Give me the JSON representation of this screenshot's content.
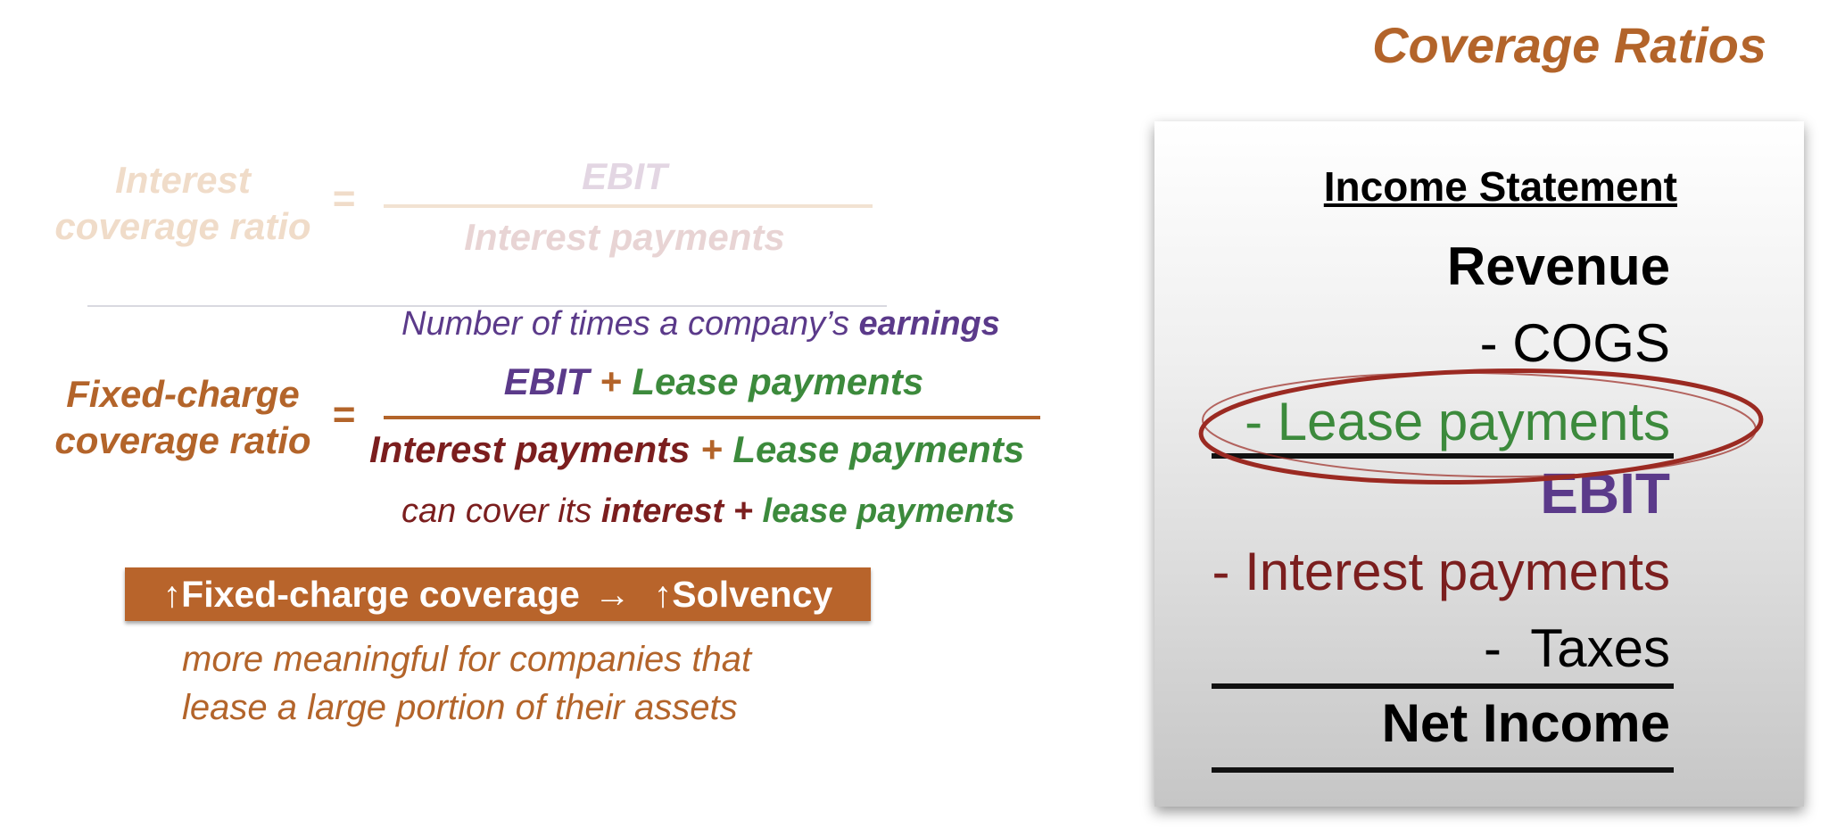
{
  "title": "Coverage Ratios",
  "interest": {
    "label_line1": "Interest",
    "label_line2": "coverage ratio",
    "equals": "=",
    "numerator": "EBIT",
    "denominator": "Interest payments"
  },
  "fixed_charge": {
    "caption_top": "Number of times a company’s",
    "caption_top_emph": "earnings",
    "label_line1": "Fixed-charge",
    "label_line2": "coverage ratio",
    "equals": "=",
    "num_a": "EBIT",
    "plus": "+",
    "num_b": "Lease payments",
    "den_a": "Interest payments",
    "den_b": "Lease payments",
    "caption_bottom": "can cover its",
    "caption_bottom_a": "interest",
    "caption_bottom_b": "lease payments"
  },
  "solvency_box": {
    "up1": "↑",
    "left": "Fixed-charge coverage",
    "arrow": "→",
    "up2": "↑",
    "right": "Solvency"
  },
  "note_line1": "more meaningful for companies that",
  "note_line2": "lease a large portion of their assets",
  "income_statement": {
    "heading": "Income Statement",
    "revenue": "Revenue",
    "cogs": "- COGS",
    "lease": "- Lease payments",
    "ebit": "EBIT",
    "interest": "- Interest payments",
    "taxes": "-  Taxes",
    "net_income": "Net Income"
  },
  "colors": {
    "accent_orange": "#b3642a",
    "purple": "#5b3a8a",
    "green": "#3c8a3c",
    "maroon": "#7b1e1e",
    "circle": "#9b2a22"
  }
}
